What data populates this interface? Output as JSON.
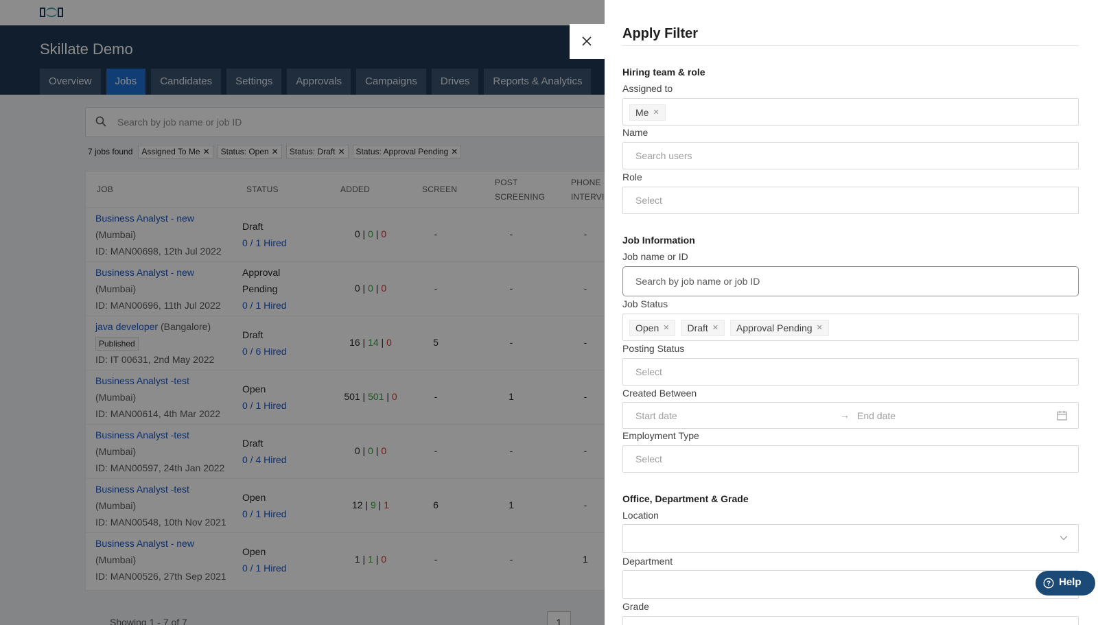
{
  "app": {
    "org_name": "Skillate Demo",
    "tabs": [
      "Overview",
      "Jobs",
      "Candidates",
      "Settings",
      "Approvals",
      "Campaigns",
      "Drives",
      "Reports & Analytics"
    ],
    "active_tab": "Jobs"
  },
  "jobs_page": {
    "search_placeholder": "Search by job name or job ID",
    "jobs_found": "7 jobs found",
    "filter_chips": [
      "Assigned To Me",
      "Status: Open",
      "Status: Draft",
      "Status: Approval Pending"
    ],
    "columns": {
      "job": "JOB",
      "status": "STATUS",
      "added": "ADDED",
      "screen": "SCREEN",
      "post_screening_1": "POST",
      "post_screening_2": "SCREENING",
      "phone_1": "PHONE",
      "phone_2": "INTERVIE"
    },
    "rows": [
      {
        "title": "Business Analyst - new",
        "location": "(Mumbai)",
        "meta": "ID: MAN00698, 12th Jul 2022",
        "badge": "",
        "status_1": "Draft",
        "status_2": "",
        "hired": "0 / 1 Hired",
        "added_a": "0",
        "added_b": "0",
        "added_c": "0",
        "screen": "-",
        "post": "-",
        "phone": "-"
      },
      {
        "title": "Business Analyst - new",
        "location": "(Mumbai)",
        "meta": "ID: MAN00696, 11th Jul 2022",
        "badge": "",
        "status_1": "Approval",
        "status_2": "Pending",
        "hired": "0 / 1 Hired",
        "added_a": "0",
        "added_b": "0",
        "added_c": "0",
        "screen": "-",
        "post": "-",
        "phone": "-"
      },
      {
        "title": "java developer",
        "location": "(Bangalore)",
        "meta": "ID: IT 00631, 2nd May 2022",
        "badge": "Published",
        "status_1": "Draft",
        "status_2": "",
        "hired": "0 / 6 Hired",
        "added_a": "16",
        "added_b": "14",
        "added_c": "0",
        "screen": "5",
        "post": "-",
        "phone": "-"
      },
      {
        "title": "Business Analyst -test",
        "location": "(Mumbai)",
        "meta": "ID: MAN00614, 4th Mar 2022",
        "badge": "",
        "status_1": "Open",
        "status_2": "",
        "hired": "0 / 1 Hired",
        "added_a": "501",
        "added_b": "501",
        "added_c": "0",
        "screen": "-",
        "post": "1",
        "phone": "-"
      },
      {
        "title": "Business Analyst -test",
        "location": "(Mumbai)",
        "meta": "ID: MAN00597, 24th Jan 2022",
        "badge": "",
        "status_1": "Draft",
        "status_2": "",
        "hired": "0 / 4 Hired",
        "added_a": "0",
        "added_b": "0",
        "added_c": "0",
        "screen": "-",
        "post": "-",
        "phone": "-"
      },
      {
        "title": "Business Analyst -test",
        "location": "(Mumbai)",
        "meta": "ID: MAN00548, 10th Nov 2021",
        "badge": "",
        "status_1": "Open",
        "status_2": "",
        "hired": "0 / 1 Hired",
        "added_a": "12",
        "added_b": "9",
        "added_c": "1",
        "screen": "6",
        "post": "1",
        "phone": "-"
      },
      {
        "title": "Business Analyst - new",
        "location": "(Mumbai)",
        "meta": "ID: MAN00526, 27th Sep 2021",
        "badge": "",
        "status_1": "Open",
        "status_2": "",
        "hired": "0 / 1 Hired",
        "added_a": "1",
        "added_b": "1",
        "added_c": "0",
        "screen": "-",
        "post": "-",
        "phone": "1"
      }
    ],
    "showing": "Showing 1 - 7 of 7",
    "page": "1"
  },
  "drawer": {
    "title": "Apply Filter",
    "hiring_section": "Hiring team & role",
    "assigned_label": "Assigned to",
    "assigned_tags": [
      "Me"
    ],
    "name_label": "Name",
    "name_placeholder": "Search users",
    "role_label": "Role",
    "role_placeholder": "Select",
    "job_info_section": "Job Information",
    "job_name_label": "Job name or ID",
    "job_name_placeholder": "Search by job name or job ID",
    "job_status_label": "Job Status",
    "job_status_tags": [
      "Open",
      "Draft",
      "Approval Pending"
    ],
    "posting_status_label": "Posting Status",
    "posting_status_placeholder": "Select",
    "created_between_label": "Created Between",
    "start_date_placeholder": "Start date",
    "end_date_placeholder": "End date",
    "employment_type_label": "Employment Type",
    "employment_type_placeholder": "Select",
    "office_section": "Office, Department & Grade",
    "location_label": "Location",
    "department_label": "Department",
    "grade_label": "Grade"
  },
  "help_label": "Help"
}
